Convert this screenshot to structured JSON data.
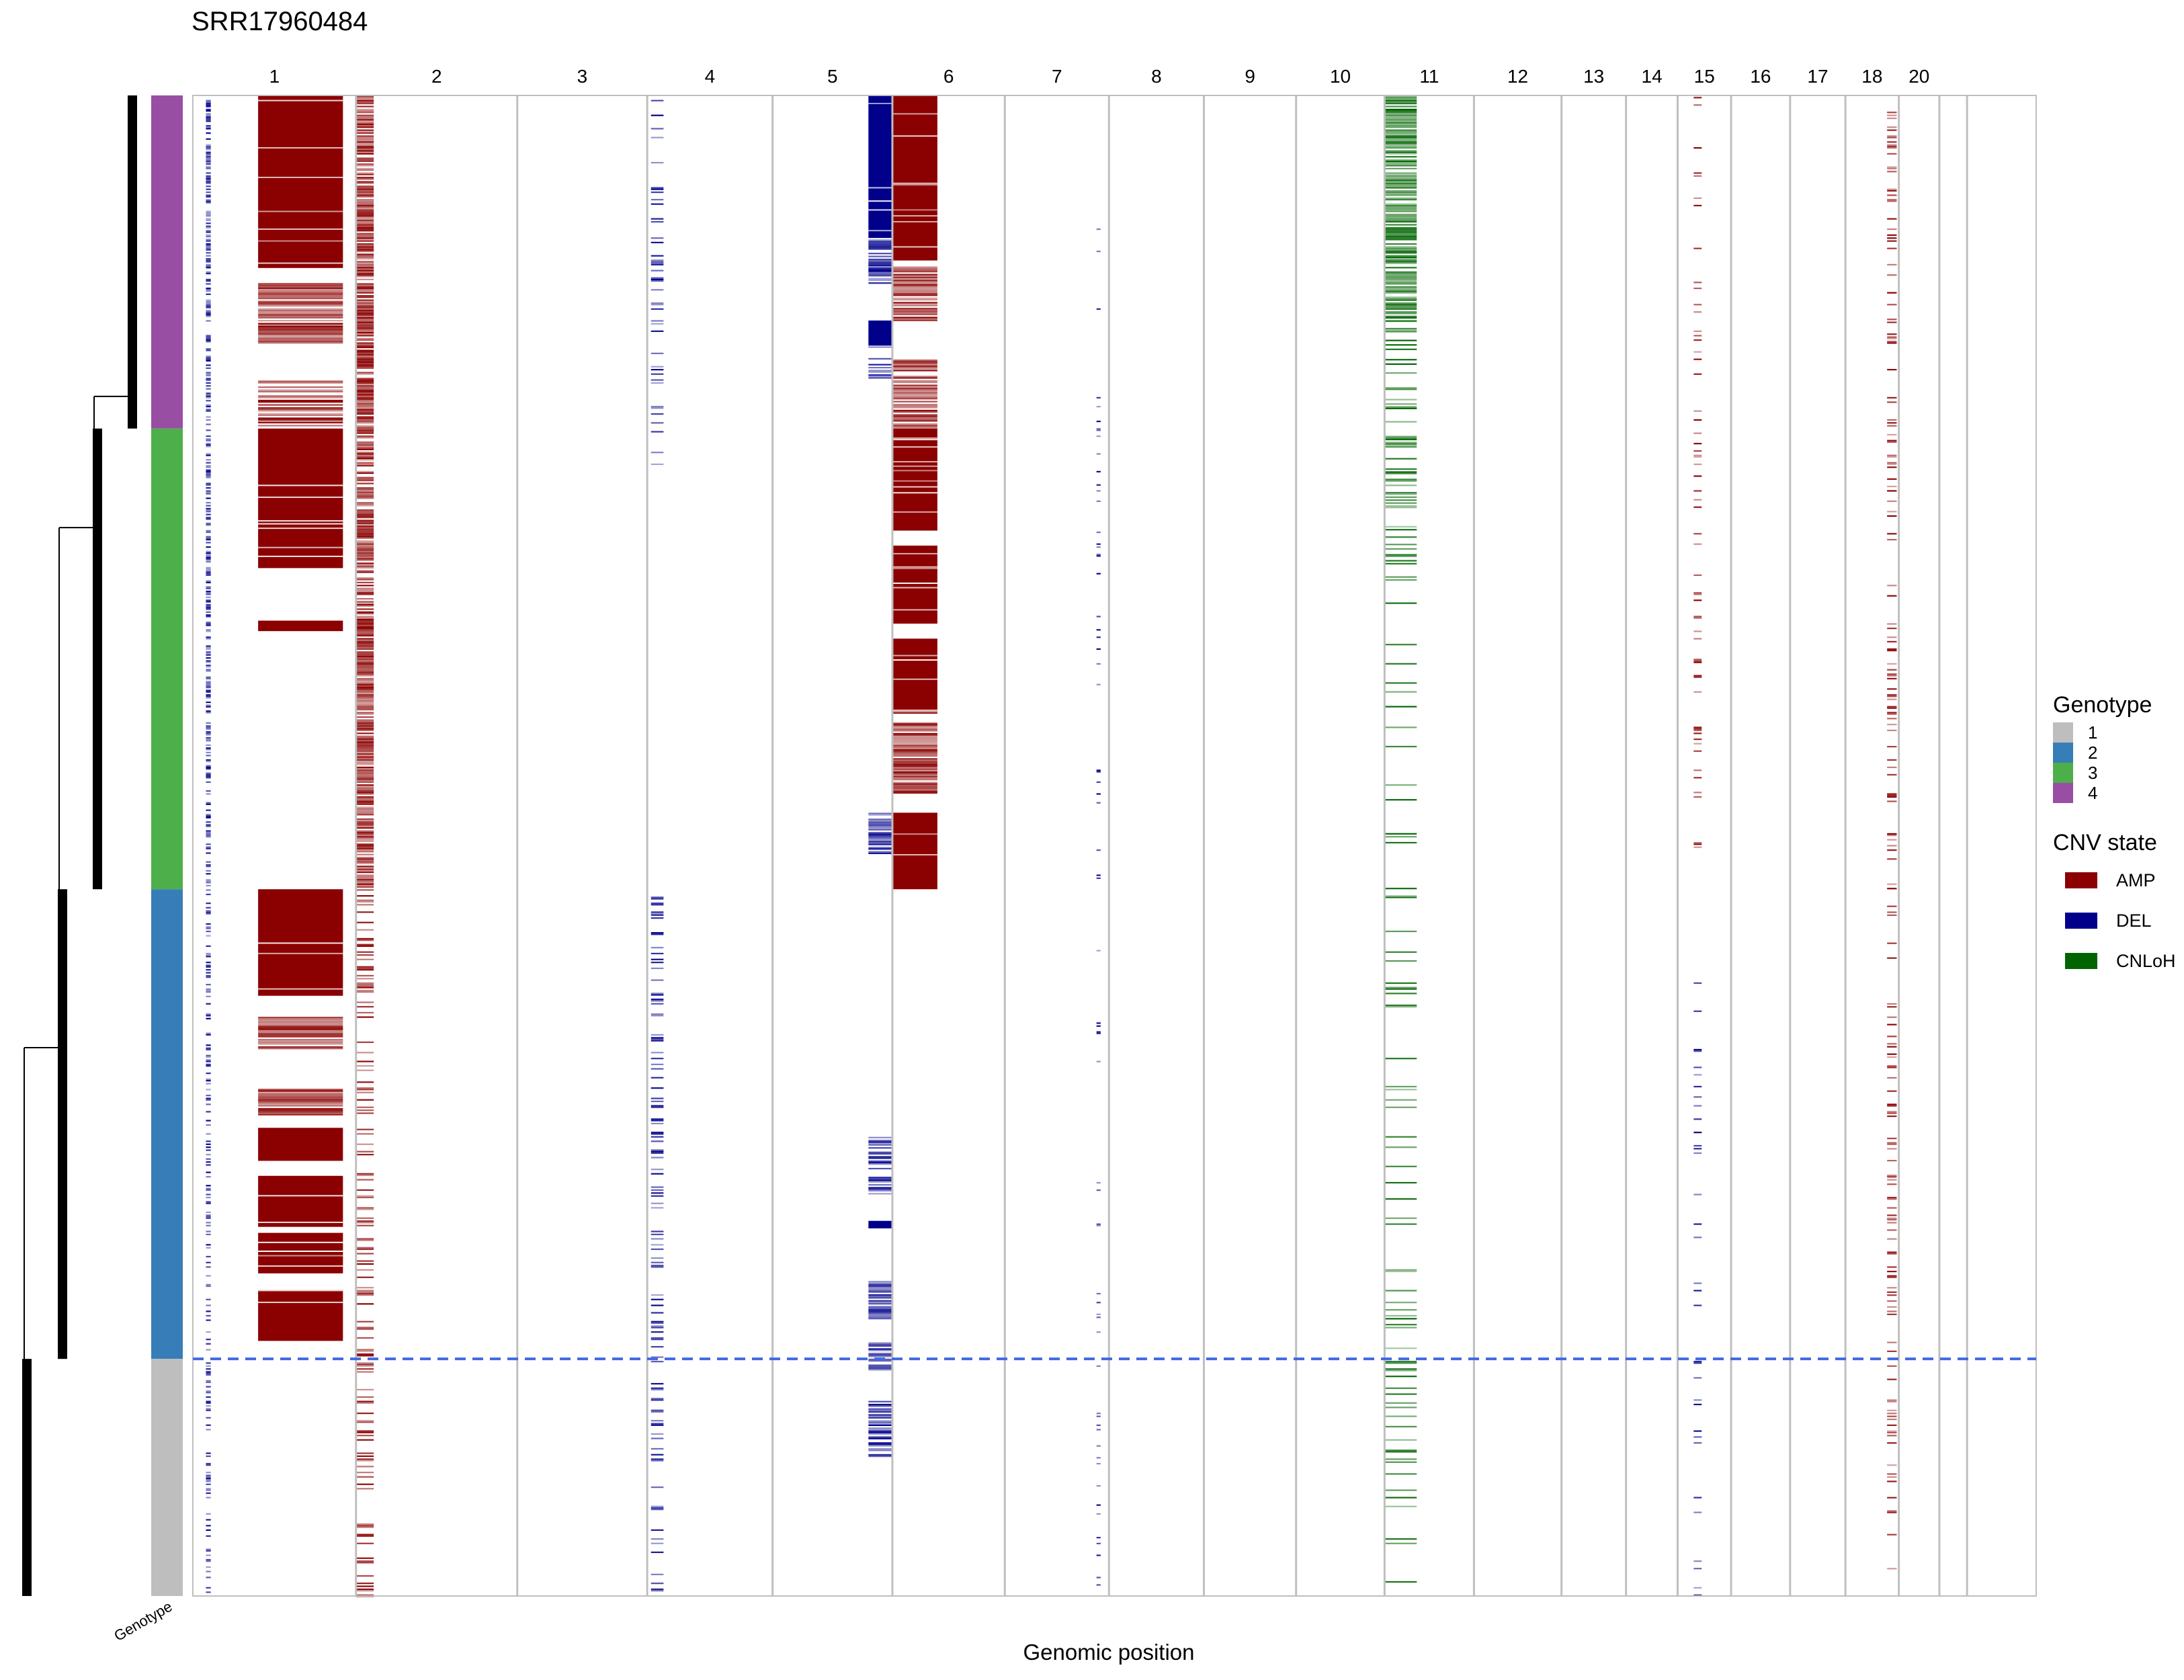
{
  "title": "SRR17960484",
  "xlabel": "Genomic position",
  "annotation_label": "Genotype",
  "chart_data": {
    "type": "heatmap",
    "title": "SRR17960484",
    "xlabel": "Genomic position",
    "ylabel": "",
    "chromosomes": [
      "1",
      "2",
      "3",
      "4",
      "5",
      "6",
      "7",
      "8",
      "9",
      "10",
      "11",
      "12",
      "13",
      "14",
      "15",
      "16",
      "17",
      "18",
      "20"
    ],
    "chromosome_boundaries_fraction": [
      0,
      0.0885,
      0.176,
      0.2465,
      0.3145,
      0.3795,
      0.4405,
      0.497,
      0.5485,
      0.5985,
      0.6465,
      0.695,
      0.7425,
      0.7775,
      0.8055,
      0.8345,
      0.8665,
      0.8965,
      0.9255,
      0.9475,
      0.9625,
      1.0
    ],
    "genotype_groups": [
      {
        "name": "4",
        "color": "#984ea3",
        "rows_fraction": [
          0,
          0.222
        ]
      },
      {
        "name": "3",
        "color": "#4daf4a",
        "rows_fraction": [
          0.222,
          0.529
        ]
      },
      {
        "name": "2",
        "color": "#377eb8",
        "rows_fraction": [
          0.529,
          0.842
        ]
      },
      {
        "name": "1",
        "color": "#bebebe",
        "rows_fraction": [
          0.842,
          1.0
        ]
      }
    ],
    "cutoff_line_fraction": 0.842,
    "cnv_segments": [
      {
        "chrom": "1",
        "state": "AMP",
        "span": [
          0.4,
          0.92
        ],
        "rows": [
          0.0,
          0.115
        ],
        "density": 1.0
      },
      {
        "chrom": "1",
        "state": "AMP",
        "span": [
          0.4,
          0.92
        ],
        "rows": [
          0.125,
          0.165
        ],
        "density": 0.85
      },
      {
        "chrom": "1",
        "state": "AMP",
        "span": [
          0.4,
          0.92
        ],
        "rows": [
          0.19,
          0.22
        ],
        "density": 0.75
      },
      {
        "chrom": "1",
        "state": "AMP",
        "span": [
          0.4,
          0.92
        ],
        "rows": [
          0.222,
          0.315
        ],
        "density": 0.95
      },
      {
        "chrom": "1",
        "state": "AMP",
        "span": [
          0.4,
          0.92
        ],
        "rows": [
          0.35,
          0.357
        ],
        "density": 1.0
      },
      {
        "chrom": "1",
        "state": "AMP",
        "span": [
          0.4,
          0.92
        ],
        "rows": [
          0.529,
          0.6
        ],
        "density": 0.95
      },
      {
        "chrom": "1",
        "state": "AMP",
        "span": [
          0.4,
          0.92
        ],
        "rows": [
          0.612,
          0.635
        ],
        "density": 0.9
      },
      {
        "chrom": "1",
        "state": "AMP",
        "span": [
          0.4,
          0.92
        ],
        "rows": [
          0.662,
          0.68
        ],
        "density": 0.8
      },
      {
        "chrom": "1",
        "state": "AMP",
        "span": [
          0.4,
          0.92
        ],
        "rows": [
          0.688,
          0.71
        ],
        "density": 0.95
      },
      {
        "chrom": "1",
        "state": "AMP",
        "span": [
          0.4,
          0.92
        ],
        "rows": [
          0.72,
          0.754
        ],
        "density": 0.95
      },
      {
        "chrom": "1",
        "state": "AMP",
        "span": [
          0.4,
          0.92
        ],
        "rows": [
          0.758,
          0.785
        ],
        "density": 0.95
      },
      {
        "chrom": "1",
        "state": "AMP",
        "span": [
          0.4,
          0.92
        ],
        "rows": [
          0.796,
          0.83
        ],
        "density": 0.95
      },
      {
        "chrom": "1",
        "state": "DEL",
        "span": [
          0.08,
          0.11
        ],
        "rows": [
          0.0,
          0.53
        ],
        "density": 0.55
      },
      {
        "chrom": "1",
        "state": "DEL",
        "span": [
          0.08,
          0.11
        ],
        "rows": [
          0.53,
          1.0
        ],
        "density": 0.3
      },
      {
        "chrom": "2",
        "state": "AMP",
        "span": [
          0.0,
          0.11
        ],
        "rows": [
          0.0,
          0.529
        ],
        "density": 0.85
      },
      {
        "chrom": "2",
        "state": "AMP",
        "span": [
          0.0,
          0.11
        ],
        "rows": [
          0.529,
          1.0
        ],
        "density": 0.25
      },
      {
        "chrom": "4",
        "state": "DEL",
        "span": [
          0.03,
          0.13
        ],
        "rows": [
          0.0,
          0.26
        ],
        "density": 0.15
      },
      {
        "chrom": "4",
        "state": "DEL",
        "span": [
          0.03,
          0.13
        ],
        "rows": [
          0.529,
          1.0
        ],
        "density": 0.2
      },
      {
        "chrom": "5",
        "state": "DEL",
        "span": [
          0.8,
          1.0
        ],
        "rows": [
          0.0,
          0.095
        ],
        "density": 1.0
      },
      {
        "chrom": "5",
        "state": "DEL",
        "span": [
          0.8,
          1.0
        ],
        "rows": [
          0.095,
          0.125
        ],
        "density": 0.7
      },
      {
        "chrom": "5",
        "state": "DEL",
        "span": [
          0.8,
          1.0
        ],
        "rows": [
          0.15,
          0.168
        ],
        "density": 0.95
      },
      {
        "chrom": "5",
        "state": "DEL",
        "span": [
          0.8,
          1.0
        ],
        "rows": [
          0.175,
          0.188
        ],
        "density": 0.75
      },
      {
        "chrom": "5",
        "state": "DEL",
        "span": [
          0.8,
          1.0
        ],
        "rows": [
          0.478,
          0.505
        ],
        "density": 0.8
      },
      {
        "chrom": "5",
        "state": "DEL",
        "span": [
          0.8,
          1.0
        ],
        "rows": [
          0.694,
          0.735
        ],
        "density": 0.75
      },
      {
        "chrom": "5",
        "state": "DEL",
        "span": [
          0.8,
          1.0
        ],
        "rows": [
          0.75,
          0.755
        ],
        "density": 1.0
      },
      {
        "chrom": "5",
        "state": "DEL",
        "span": [
          0.8,
          1.0
        ],
        "rows": [
          0.79,
          0.815
        ],
        "density": 0.8
      },
      {
        "chrom": "5",
        "state": "DEL",
        "span": [
          0.8,
          1.0
        ],
        "rows": [
          0.83,
          0.85
        ],
        "density": 0.6
      },
      {
        "chrom": "5",
        "state": "DEL",
        "span": [
          0.8,
          1.0
        ],
        "rows": [
          0.868,
          0.91
        ],
        "density": 0.7
      },
      {
        "chrom": "6",
        "state": "AMP",
        "span": [
          0.0,
          0.4
        ],
        "rows": [
          0.0,
          0.11
        ],
        "density": 1.0
      },
      {
        "chrom": "6",
        "state": "AMP",
        "span": [
          0.0,
          0.4
        ],
        "rows": [
          0.113,
          0.15
        ],
        "density": 0.9
      },
      {
        "chrom": "6",
        "state": "AMP",
        "span": [
          0.0,
          0.4
        ],
        "rows": [
          0.175,
          0.222
        ],
        "density": 0.8
      },
      {
        "chrom": "6",
        "state": "AMP",
        "span": [
          0.0,
          0.4
        ],
        "rows": [
          0.222,
          0.29
        ],
        "density": 0.95
      },
      {
        "chrom": "6",
        "state": "AMP",
        "span": [
          0.0,
          0.4
        ],
        "rows": [
          0.3,
          0.352
        ],
        "density": 0.95
      },
      {
        "chrom": "6",
        "state": "AMP",
        "span": [
          0.0,
          0.4
        ],
        "rows": [
          0.362,
          0.412
        ],
        "density": 0.95
      },
      {
        "chrom": "6",
        "state": "AMP",
        "span": [
          0.0,
          0.4
        ],
        "rows": [
          0.418,
          0.465
        ],
        "density": 0.9
      },
      {
        "chrom": "6",
        "state": "AMP",
        "span": [
          0.0,
          0.4
        ],
        "rows": [
          0.478,
          0.529
        ],
        "density": 0.95
      },
      {
        "chrom": "7",
        "state": "DEL",
        "span": [
          0.88,
          0.92
        ],
        "rows": [
          0.0,
          1.0
        ],
        "density": 0.06
      },
      {
        "chrom": "11",
        "state": "CNLoH",
        "span": [
          0.0,
          0.36
        ],
        "rows": [
          0.0,
          0.15
        ],
        "density": 0.75
      },
      {
        "chrom": "11",
        "state": "CNLoH",
        "span": [
          0.0,
          0.36
        ],
        "rows": [
          0.15,
          0.33
        ],
        "density": 0.25
      },
      {
        "chrom": "11",
        "state": "CNLoH",
        "span": [
          0.0,
          0.36
        ],
        "rows": [
          0.33,
          1.0
        ],
        "density": 0.12
      },
      {
        "chrom": "15",
        "state": "AMP",
        "span": [
          0.3,
          0.45
        ],
        "rows": [
          0.0,
          0.53
        ],
        "density": 0.1
      },
      {
        "chrom": "15",
        "state": "DEL",
        "span": [
          0.3,
          0.45
        ],
        "rows": [
          0.53,
          1.0
        ],
        "density": 0.06
      },
      {
        "chrom": "18",
        "state": "AMP",
        "span": [
          0.78,
          0.96
        ],
        "rows": [
          0.0,
          1.0
        ],
        "density": 0.18
      }
    ],
    "legend": {
      "placement": "right",
      "genotype": {
        "title": "Genotype",
        "items": [
          "1",
          "2",
          "3",
          "4"
        ]
      },
      "cnv": {
        "title": "CNV state",
        "items": [
          "AMP",
          "DEL",
          "CNLoH"
        ]
      }
    }
  },
  "colors": {
    "AMP": "#8b0000",
    "DEL": "#00008b",
    "CNLoH": "#006400",
    "genotype_1": "#bebebe",
    "genotype_2": "#377eb8",
    "genotype_3": "#4daf4a",
    "genotype_4": "#984ea3",
    "cutoff_line": "#4169e1",
    "chrom_border": "#bfbfbf"
  },
  "legend_genotype": {
    "title": "Genotype",
    "items": [
      {
        "label": "1",
        "color": "#bebebe"
      },
      {
        "label": "2",
        "color": "#377eb8"
      },
      {
        "label": "3",
        "color": "#4daf4a"
      },
      {
        "label": "4",
        "color": "#984ea3"
      }
    ]
  },
  "legend_cnv": {
    "title": "CNV state",
    "items": [
      {
        "label": "AMP",
        "color": "#8b0000"
      },
      {
        "label": "DEL",
        "color": "#00008b"
      },
      {
        "label": "CNLoH",
        "color": "#006400"
      }
    ]
  }
}
